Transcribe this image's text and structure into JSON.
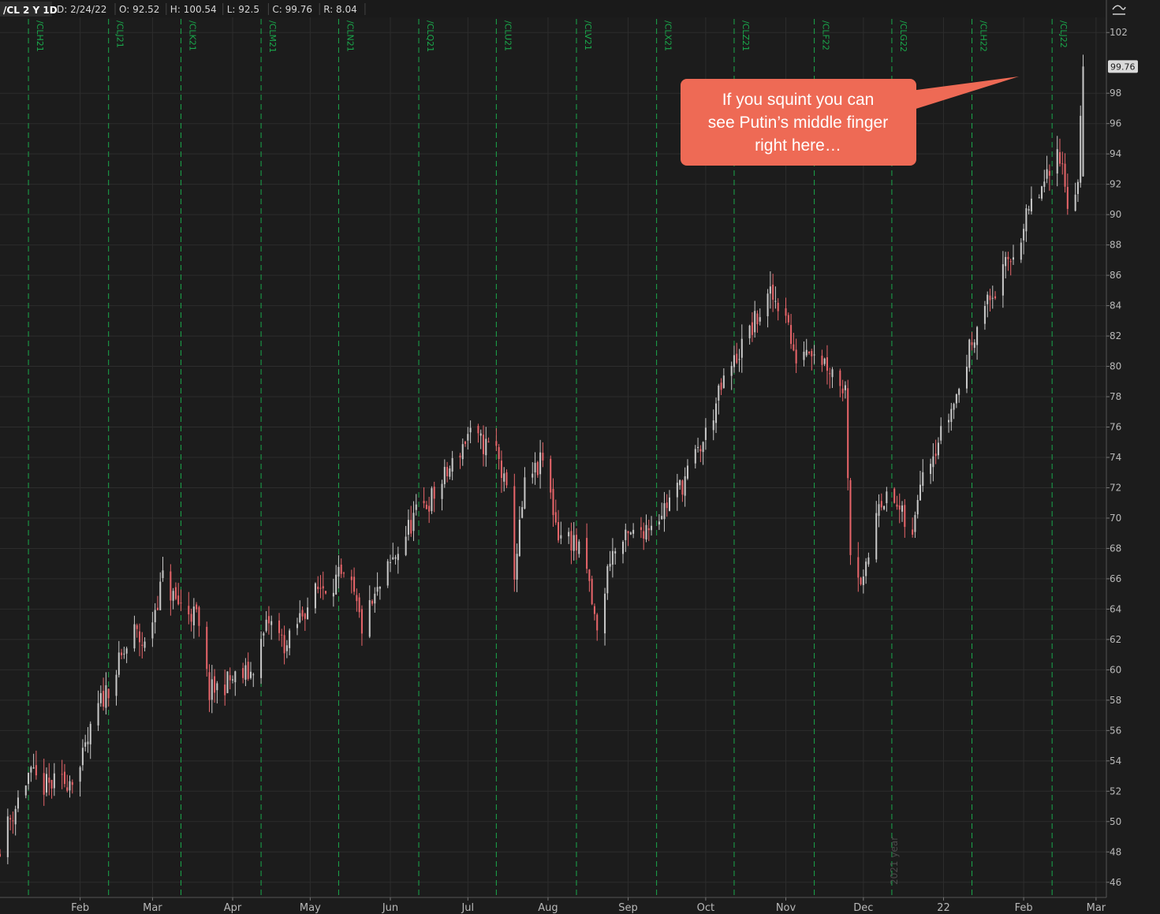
{
  "header": {
    "symbol": "/CL 2 Y 1D",
    "fields": [
      "D: 2/24/22",
      "O: 92.52",
      "H: 100.54",
      "L: 92.5",
      "C: 99.76",
      "R: 8.04"
    ]
  },
  "icons": {
    "menu": "chart-type-icon"
  },
  "colors": {
    "background": "#1c1c1c",
    "up": "#c8c8c8",
    "down": "#e8656a",
    "expiration": "#1aa84b",
    "grid": "#2d2d2d",
    "callout": "#ee6a55"
  },
  "annotation": {
    "lines": [
      "If you squint you can",
      "see Putin’s middle finger",
      "right here…"
    ]
  },
  "last_price_label": "99.76",
  "year_watermark": "2021 year",
  "chart_data": {
    "type": "candlestick",
    "title": "",
    "xlabel": "",
    "ylabel": "",
    "x_range": [
      "2021-01-01",
      "2022-03-05"
    ],
    "ylim": [
      45,
      103
    ],
    "y_ticks": [
      46,
      48,
      50,
      52,
      54,
      56,
      58,
      60,
      62,
      64,
      66,
      68,
      70,
      72,
      74,
      76,
      78,
      80,
      82,
      84,
      86,
      88,
      90,
      92,
      94,
      96,
      98,
      102
    ],
    "x_ticks": [
      {
        "date": "2021-02-01",
        "label": "Feb"
      },
      {
        "date": "2021-03-01",
        "label": "Mar"
      },
      {
        "date": "2021-04-01",
        "label": "Apr"
      },
      {
        "date": "2021-05-01",
        "label": "May"
      },
      {
        "date": "2021-06-01",
        "label": "Jun"
      },
      {
        "date": "2021-07-01",
        "label": "Jul"
      },
      {
        "date": "2021-08-01",
        "label": "Aug"
      },
      {
        "date": "2021-09-01",
        "label": "Sep"
      },
      {
        "date": "2021-10-01",
        "label": "Oct"
      },
      {
        "date": "2021-11-01",
        "label": "Nov"
      },
      {
        "date": "2021-12-01",
        "label": "Dec"
      },
      {
        "date": "2022-01-01",
        "label": "22"
      },
      {
        "date": "2022-02-01",
        "label": "Feb"
      },
      {
        "date": "2022-03-01",
        "label": "Mar"
      }
    ],
    "expirations": [
      {
        "date": "2021-01-12",
        "label": "/CLH21"
      },
      {
        "date": "2021-02-12",
        "label": "/CLJ21"
      },
      {
        "date": "2021-03-12",
        "label": "/CLK21"
      },
      {
        "date": "2021-04-12",
        "label": "/CLM21"
      },
      {
        "date": "2021-05-12",
        "label": "/CLN21"
      },
      {
        "date": "2021-06-12",
        "label": "/CLQ21"
      },
      {
        "date": "2021-07-12",
        "label": "/CLU21"
      },
      {
        "date": "2021-08-12",
        "label": "/CLV21"
      },
      {
        "date": "2021-09-12",
        "label": "/CLX21"
      },
      {
        "date": "2021-10-12",
        "label": "/CLZ21"
      },
      {
        "date": "2021-11-12",
        "label": "/CLF22"
      },
      {
        "date": "2021-12-12",
        "label": "/CLG22"
      },
      {
        "date": "2022-01-12",
        "label": "/CLH22"
      },
      {
        "date": "2022-02-12",
        "label": "/CLJ22"
      }
    ],
    "close_anchors": [
      [
        "2021-01-01",
        48.5
      ],
      [
        "2021-01-06",
        50.6
      ],
      [
        "2021-01-12",
        53.1
      ],
      [
        "2021-01-18",
        52.3
      ],
      [
        "2021-01-26",
        52.6
      ],
      [
        "2021-02-01",
        53.5
      ],
      [
        "2021-02-08",
        57.5
      ],
      [
        "2021-02-15",
        60.0
      ],
      [
        "2021-02-22",
        62.5
      ],
      [
        "2021-02-26",
        61.5
      ],
      [
        "2021-03-05",
        66.0
      ],
      [
        "2021-03-10",
        64.5
      ],
      [
        "2021-03-18",
        63.5
      ],
      [
        "2021-03-23",
        58.5
      ],
      [
        "2021-03-31",
        59.3
      ],
      [
        "2021-04-08",
        59.8
      ],
      [
        "2021-04-15",
        63.2
      ],
      [
        "2021-04-22",
        61.5
      ],
      [
        "2021-04-28",
        63.8
      ],
      [
        "2021-05-05",
        65.5
      ],
      [
        "2021-05-12",
        66.0
      ],
      [
        "2021-05-17",
        65.3
      ],
      [
        "2021-05-21",
        62.8
      ],
      [
        "2021-05-31",
        66.5
      ],
      [
        "2021-06-10",
        70.0
      ],
      [
        "2021-06-18",
        71.5
      ],
      [
        "2021-06-25",
        73.5
      ],
      [
        "2021-07-01",
        75.5
      ],
      [
        "2021-07-05",
        75.0
      ],
      [
        "2021-07-12",
        74.5
      ],
      [
        "2021-07-16",
        71.5
      ],
      [
        "2021-07-19",
        66.5
      ],
      [
        "2021-07-23",
        72.0
      ],
      [
        "2021-07-30",
        73.8
      ],
      [
        "2021-08-05",
        69.0
      ],
      [
        "2021-08-11",
        68.5
      ],
      [
        "2021-08-16",
        66.5
      ],
      [
        "2021-08-20",
        62.3
      ],
      [
        "2021-08-25",
        67.5
      ],
      [
        "2021-08-31",
        68.5
      ],
      [
        "2021-09-08",
        69.5
      ],
      [
        "2021-09-14",
        70.5
      ],
      [
        "2021-09-22",
        72.3
      ],
      [
        "2021-09-30",
        75.0
      ],
      [
        "2021-10-07",
        78.5
      ],
      [
        "2021-10-14",
        81.0
      ],
      [
        "2021-10-22",
        83.5
      ],
      [
        "2021-10-26",
        84.6
      ],
      [
        "2021-11-01",
        83.8
      ],
      [
        "2021-11-04",
        80.5
      ],
      [
        "2021-11-10",
        81.5
      ],
      [
        "2021-11-18",
        80.0
      ],
      [
        "2021-11-24",
        78.5
      ],
      [
        "2021-11-26",
        68.0
      ],
      [
        "2021-12-01",
        65.5
      ],
      [
        "2021-12-07",
        71.5
      ],
      [
        "2021-12-14",
        70.8
      ],
      [
        "2021-12-20",
        68.5
      ],
      [
        "2021-12-23",
        73.0
      ],
      [
        "2021-12-31",
        75.5
      ],
      [
        "2022-01-07",
        78.5
      ],
      [
        "2022-01-14",
        83.0
      ],
      [
        "2022-01-21",
        85.0
      ],
      [
        "2022-01-28",
        87.5
      ],
      [
        "2022-02-04",
        90.5
      ],
      [
        "2022-02-11",
        92.5
      ],
      [
        "2022-02-14",
        95.0
      ],
      [
        "2022-02-18",
        91.0
      ],
      [
        "2022-02-22",
        92.0
      ],
      [
        "2022-02-24",
        99.76
      ]
    ]
  }
}
